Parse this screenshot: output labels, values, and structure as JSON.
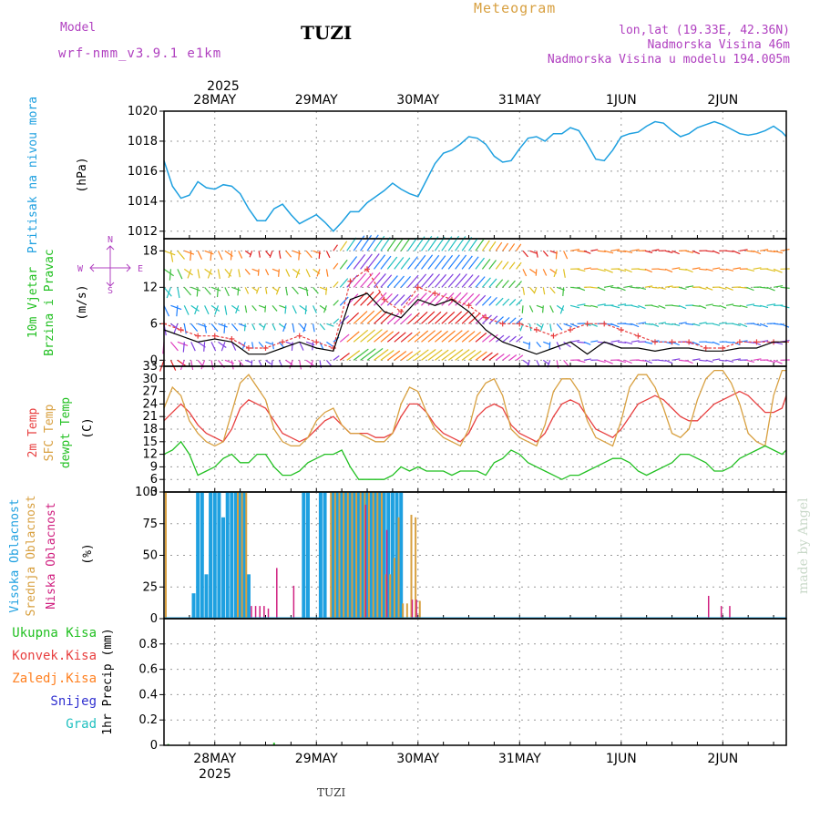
{
  "header": {
    "model_label": "Model",
    "model_name": "wrf-nmm_v3.9.1  e1km",
    "station": "TUZI",
    "product": "Meteogram",
    "lonlat": "lon,lat (19.33E, 42.36N)",
    "elevation": "Nadmorska Visina 46m",
    "model_elevation": "Nadmorska Visina u modelu 194.005m",
    "footer_station": "TUZI",
    "watermark": "made by Angel"
  },
  "colors": {
    "pressure": "#1ea0e0",
    "wind_label": "#22c022",
    "wind_dir_label": "#b040c0",
    "temp2m": "#e84040",
    "sfc_temp": "#d8a040",
    "dewpoint": "#22c022",
    "high_cloud": "#1ea0e0",
    "mid_cloud": "#d8a040",
    "low_cloud": "#d02080",
    "total_precip": "#22c022",
    "conv_precip": "#e84040",
    "frz_precip": "#ff8020",
    "snow": "#3030d0",
    "hail": "#20c0c0",
    "header_purple": "#b040c0",
    "header_gold": "#d8a040"
  },
  "chart_data": [
    {
      "type": "line",
      "panel": "pressure",
      "ylabel": [
        "Pritisak na nivou mora",
        "(hPa)"
      ],
      "x_unit": "hours since 27 MAY 2025 12:00",
      "ylim": [
        1011.5,
        1020
      ],
      "yticks": [
        1012,
        1014,
        1016,
        1018,
        1020
      ],
      "series": [
        {
          "name": "Pritisak na nivou mora",
          "x": [
            0,
            2,
            4,
            6,
            8,
            10,
            12,
            14,
            16,
            18,
            20,
            22,
            24,
            26,
            28,
            30,
            32,
            34,
            36,
            38,
            40,
            42,
            44,
            46,
            48,
            50,
            52,
            54,
            56,
            58,
            60,
            62,
            64,
            66,
            68,
            70,
            72,
            74,
            76,
            78,
            80,
            82,
            84,
            86,
            88,
            90,
            92,
            94,
            96,
            98,
            100,
            102,
            104,
            106,
            108,
            110,
            112,
            114,
            116,
            118,
            120,
            122,
            124,
            126,
            128,
            130,
            132,
            134,
            136,
            138,
            140,
            142,
            144,
            146,
            147
          ],
          "values": [
            1016.7,
            1015.0,
            1014.2,
            1014.4,
            1015.3,
            1014.9,
            1014.8,
            1015.1,
            1015.0,
            1014.5,
            1013.5,
            1012.7,
            1012.7,
            1013.5,
            1013.8,
            1013.1,
            1012.5,
            1012.8,
            1013.1,
            1012.6,
            1012.0,
            1012.6,
            1013.3,
            1013.3,
            1013.9,
            1014.3,
            1014.7,
            1015.2,
            1014.8,
            1014.5,
            1014.3,
            1015.4,
            1016.5,
            1017.2,
            1017.4,
            1017.8,
            1018.3,
            1018.2,
            1017.8,
            1017.0,
            1016.6,
            1016.7,
            1017.5,
            1018.2,
            1018.3,
            1018.0,
            1018.5,
            1018.5,
            1018.9,
            1018.7,
            1017.8,
            1016.8,
            1016.7,
            1017.4,
            1018.3,
            1018.5,
            1018.6,
            1019.0,
            1019.3,
            1019.2,
            1018.7,
            1018.3,
            1018.5,
            1018.9,
            1019.1,
            1019.3,
            1019.1,
            1018.8,
            1018.5,
            1018.4,
            1018.5,
            1018.7,
            1019.0,
            1018.6,
            1018.3
          ]
        }
      ]
    },
    {
      "type": "line",
      "panel": "wind",
      "ylabel": [
        "10m Vjetar",
        "Brzina i Pravac",
        "(m/s)"
      ],
      "compass": {
        "n": "N",
        "s": "S",
        "w": "W",
        "e": "E"
      },
      "x_unit": "hours since 27 MAY 2025 12:00",
      "ylim": [
        -1,
        20
      ],
      "yticks": [
        0,
        6,
        12,
        18
      ],
      "series": [
        {
          "name": "wind speed",
          "x": [
            0,
            4,
            8,
            12,
            16,
            20,
            24,
            28,
            32,
            36,
            40,
            44,
            48,
            52,
            56,
            60,
            64,
            68,
            72,
            76,
            80,
            84,
            88,
            92,
            96,
            100,
            104,
            108,
            112,
            116,
            120,
            124,
            128,
            132,
            136,
            140,
            144,
            147
          ],
          "values": [
            5,
            4,
            3,
            3.5,
            3,
            1,
            1,
            2,
            3,
            2,
            1.5,
            10,
            11,
            8,
            7,
            10,
            9,
            10,
            8,
            5,
            3,
            2,
            1,
            2,
            3,
            1,
            3,
            2,
            2,
            1.5,
            2,
            2,
            1.5,
            1.5,
            2,
            2,
            3,
            3
          ]
        },
        {
          "name": "gust",
          "x": [
            0,
            4,
            8,
            12,
            16,
            20,
            24,
            28,
            32,
            36,
            40,
            44,
            48,
            52,
            56,
            60,
            64,
            68,
            72,
            76,
            80,
            84,
            88,
            92,
            96,
            100,
            104,
            108,
            112,
            116,
            120,
            124,
            128,
            132,
            136,
            140,
            144,
            147
          ],
          "values": [
            6,
            5,
            4,
            4,
            3.5,
            2,
            2,
            3,
            4,
            3,
            2,
            13,
            15,
            10,
            8,
            12,
            11,
            10,
            9,
            7,
            6,
            6,
            5,
            4,
            5,
            6,
            6,
            5,
            4,
            3,
            3,
            3,
            2,
            2,
            3,
            3,
            3,
            3
          ]
        }
      ]
    },
    {
      "type": "line",
      "panel": "temperature",
      "ylabel": [
        "2m Temp",
        "SFC Temp",
        "dewpt Temp",
        "(C)"
      ],
      "x_unit": "hours since 27 MAY 2025 12:00",
      "ylim": [
        3,
        33
      ],
      "yticks": [
        3,
        6,
        9,
        12,
        15,
        18,
        21,
        24,
        27,
        30,
        33
      ],
      "series": [
        {
          "name": "2m Temp",
          "x": [
            0,
            2,
            4,
            6,
            8,
            10,
            12,
            14,
            16,
            18,
            20,
            22,
            24,
            26,
            28,
            30,
            32,
            34,
            36,
            38,
            40,
            42,
            44,
            46,
            48,
            50,
            52,
            54,
            56,
            58,
            60,
            62,
            64,
            66,
            68,
            70,
            72,
            74,
            76,
            78,
            80,
            82,
            84,
            86,
            88,
            90,
            92,
            94,
            96,
            98,
            100,
            102,
            104,
            106,
            108,
            110,
            112,
            114,
            116,
            118,
            120,
            122,
            124,
            126,
            128,
            130,
            132,
            134,
            136,
            138,
            140,
            142,
            144,
            146,
            147
          ],
          "values": [
            20,
            22,
            24,
            22,
            19,
            17,
            16,
            15,
            18,
            23,
            25,
            24,
            23,
            20,
            17,
            16,
            15,
            16,
            18,
            20,
            21,
            19,
            17,
            17,
            17,
            16,
            16,
            17,
            21,
            24,
            24,
            22,
            19,
            17,
            16,
            15,
            17,
            21,
            23,
            24,
            23,
            19,
            17,
            16,
            15,
            17,
            21,
            24,
            25,
            24,
            21,
            18,
            17,
            16,
            18,
            21,
            24,
            25,
            26,
            25,
            23,
            21,
            20,
            20,
            22,
            24,
            25,
            26,
            27,
            26,
            24,
            22,
            22,
            23,
            26
          ]
        },
        {
          "name": "SFC Temp",
          "x": [
            0,
            2,
            4,
            6,
            8,
            10,
            12,
            14,
            16,
            18,
            20,
            22,
            24,
            26,
            28,
            30,
            32,
            34,
            36,
            38,
            40,
            42,
            44,
            46,
            48,
            50,
            52,
            54,
            56,
            58,
            60,
            62,
            64,
            66,
            68,
            70,
            72,
            74,
            76,
            78,
            80,
            82,
            84,
            86,
            88,
            90,
            92,
            94,
            96,
            98,
            100,
            102,
            104,
            106,
            108,
            110,
            112,
            114,
            116,
            118,
            120,
            122,
            124,
            126,
            128,
            130,
            132,
            134,
            136,
            138,
            140,
            142,
            144,
            146,
            147
          ],
          "values": [
            23,
            28,
            26,
            20,
            17,
            15,
            14,
            15,
            22,
            29,
            31,
            28,
            25,
            18,
            15,
            14,
            14,
            16,
            20,
            22,
            23,
            19,
            17,
            17,
            16,
            15,
            15,
            17,
            24,
            28,
            27,
            22,
            18,
            16,
            15,
            14,
            18,
            26,
            29,
            30,
            26,
            18,
            16,
            15,
            14,
            19,
            27,
            30,
            30,
            27,
            20,
            16,
            15,
            14,
            20,
            28,
            31,
            31,
            28,
            23,
            17,
            16,
            18,
            25,
            30,
            32,
            32,
            29,
            24,
            17,
            15,
            14,
            26,
            32,
            32
          ]
        },
        {
          "name": "dewpt Temp",
          "x": [
            0,
            2,
            4,
            6,
            8,
            10,
            12,
            14,
            16,
            18,
            20,
            22,
            24,
            26,
            28,
            30,
            32,
            34,
            36,
            38,
            40,
            42,
            44,
            46,
            48,
            50,
            52,
            54,
            56,
            58,
            60,
            62,
            64,
            66,
            68,
            70,
            72,
            74,
            76,
            78,
            80,
            82,
            84,
            86,
            88,
            90,
            92,
            94,
            96,
            98,
            100,
            102,
            104,
            106,
            108,
            110,
            112,
            114,
            116,
            118,
            120,
            122,
            124,
            126,
            128,
            130,
            132,
            134,
            136,
            138,
            140,
            142,
            144,
            146,
            147
          ],
          "values": [
            12,
            13,
            15,
            12,
            7,
            8,
            9,
            11,
            12,
            10,
            10,
            12,
            12,
            9,
            7,
            7,
            8,
            10,
            11,
            12,
            12,
            13,
            9,
            6,
            6,
            6,
            6,
            7,
            9,
            8,
            9,
            8,
            8,
            8,
            7,
            8,
            8,
            8,
            7,
            10,
            11,
            13,
            12,
            10,
            9,
            8,
            7,
            6,
            7,
            7,
            8,
            9,
            10,
            11,
            11,
            10,
            8,
            7,
            8,
            9,
            10,
            12,
            12,
            11,
            10,
            8,
            8,
            9,
            11,
            12,
            13,
            14,
            13,
            12,
            13
          ]
        }
      ]
    },
    {
      "type": "bar",
      "panel": "clouds",
      "ylabel": [
        "Visoka Oblacnost",
        "Srednja Oblacnost",
        "Niska Oblacnost",
        "(%)"
      ],
      "x_unit": "hours since 27 MAY 2025 12:00",
      "ylim": [
        0,
        100
      ],
      "yticks": [
        0,
        25,
        50,
        75,
        100
      ],
      "series": [
        {
          "name": "Visoka Oblacnost",
          "x": [
            7,
            8,
            9,
            10,
            11,
            12,
            13,
            14,
            15,
            16,
            17,
            18,
            19,
            20,
            33,
            34,
            37,
            38,
            40,
            41,
            42,
            43,
            44,
            45,
            46,
            47,
            48,
            49,
            50,
            51,
            52,
            53,
            54,
            55,
            56
          ],
          "values": [
            20,
            100,
            100,
            35,
            100,
            100,
            100,
            80,
            100,
            100,
            100,
            100,
            100,
            35,
            100,
            100,
            100,
            100,
            100,
            100,
            100,
            100,
            100,
            100,
            100,
            100,
            100,
            100,
            100,
            100,
            100,
            100,
            100,
            100,
            100
          ]
        },
        {
          "name": "Srednja Oblacnost",
          "x": [
            0,
            17,
            18,
            19,
            39,
            40,
            41,
            42,
            43,
            44,
            45,
            46,
            47,
            48,
            49,
            50,
            51,
            52,
            53,
            54,
            55,
            56,
            57,
            58,
            59,
            60
          ],
          "values": [
            100,
            100,
            100,
            100,
            100,
            100,
            100,
            100,
            100,
            100,
            100,
            100,
            100,
            100,
            100,
            100,
            100,
            35,
            35,
            48,
            80,
            12,
            12,
            82,
            80,
            14
          ]
        },
        {
          "name": "Niska Oblacnost",
          "x": [
            20,
            21,
            22,
            23,
            24,
            26,
            30,
            47,
            52,
            58,
            59,
            128,
            131,
            133
          ],
          "values": [
            10,
            10,
            10,
            10,
            8,
            40,
            26,
            90,
            70,
            15,
            15,
            18,
            10,
            10
          ]
        }
      ]
    },
    {
      "type": "bar",
      "panel": "precipitation",
      "ylabel": [
        "Ukupna Kisa",
        "Konvek.Kisa",
        "Zaledj.Kisa",
        "Snijeg",
        "Grad",
        "1hr Precip (mm)"
      ],
      "x_unit": "hours since 27 MAY 2025 12:00",
      "ylim": [
        0,
        1.0
      ],
      "yticks": [
        0,
        0.2,
        0.4,
        0.6,
        0.8
      ],
      "series": [
        {
          "name": "Ukupna Kisa",
          "x": [
            1,
            26
          ],
          "values": [
            0.01,
            0.02
          ]
        },
        {
          "name": "Konvek.Kisa",
          "x": [],
          "values": []
        },
        {
          "name": "Zaledj.Kisa",
          "x": [],
          "values": []
        },
        {
          "name": "Snijeg",
          "x": [],
          "values": []
        },
        {
          "name": "Grad",
          "x": [],
          "values": []
        }
      ]
    }
  ],
  "time_axis": {
    "year_top": "2025",
    "year_bottom": "2025",
    "labels": [
      {
        "text": "28MAY",
        "hour": 12
      },
      {
        "text": "29MAY",
        "hour": 36
      },
      {
        "text": "30MAY",
        "hour": 60
      },
      {
        "text": "31MAY",
        "hour": 84
      },
      {
        "text": "1JUN",
        "hour": 108
      },
      {
        "text": "2JUN",
        "hour": 132
      }
    ],
    "range": [
      0,
      147
    ]
  }
}
